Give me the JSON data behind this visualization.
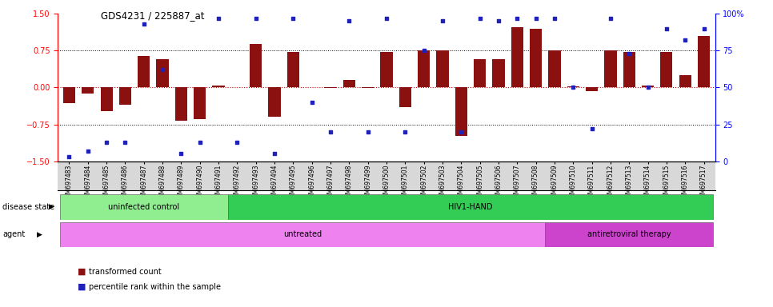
{
  "title": "GDS4231 / 225887_at",
  "samples": [
    "GSM697483",
    "GSM697484",
    "GSM697485",
    "GSM697486",
    "GSM697487",
    "GSM697488",
    "GSM697489",
    "GSM697490",
    "GSM697491",
    "GSM697492",
    "GSM697493",
    "GSM697494",
    "GSM697495",
    "GSM697496",
    "GSM697497",
    "GSM697498",
    "GSM697499",
    "GSM697500",
    "GSM697501",
    "GSM697502",
    "GSM697503",
    "GSM697504",
    "GSM697505",
    "GSM697506",
    "GSM697507",
    "GSM697508",
    "GSM697509",
    "GSM697510",
    "GSM697511",
    "GSM697512",
    "GSM697513",
    "GSM697514",
    "GSM697515",
    "GSM697516",
    "GSM697517"
  ],
  "bar_values": [
    -0.32,
    -0.13,
    -0.48,
    -0.35,
    0.65,
    0.58,
    -0.68,
    -0.65,
    0.04,
    0.01,
    0.88,
    -0.6,
    0.72,
    0.01,
    -0.01,
    0.16,
    -0.01,
    0.72,
    -0.4,
    0.76,
    0.75,
    -0.98,
    0.58,
    0.58,
    1.22,
    1.2,
    0.75,
    0.02,
    -0.07,
    0.75,
    0.72,
    0.04,
    0.72,
    0.25,
    1.05
  ],
  "percentile_values": [
    3,
    7,
    13,
    13,
    93,
    62,
    5,
    13,
    97,
    13,
    97,
    5,
    97,
    40,
    20,
    95,
    20,
    97,
    20,
    75,
    95,
    20,
    97,
    95,
    97,
    97,
    97,
    50,
    22,
    97,
    73,
    50,
    90,
    82,
    90
  ],
  "bar_color": "#8B1010",
  "dot_color": "#2020BB",
  "ylim_left": [
    -1.5,
    1.5
  ],
  "ylim_right": [
    0,
    100
  ],
  "yticks_left": [
    -1.5,
    -0.75,
    0.0,
    0.75,
    1.5
  ],
  "yticks_right": [
    0,
    25,
    50,
    75,
    100
  ],
  "disease_state_groups": [
    {
      "label": "uninfected control",
      "start": 0,
      "end": 9,
      "color": "#90EE90"
    },
    {
      "label": "HIV1-HAND",
      "start": 9,
      "end": 35,
      "color": "#33CC55"
    }
  ],
  "agent_groups": [
    {
      "label": "untreated",
      "start": 0,
      "end": 26,
      "color": "#EE82EE"
    },
    {
      "label": "antiretroviral therapy",
      "start": 26,
      "end": 35,
      "color": "#CC44CC"
    }
  ],
  "legend_bar_label": "transformed count",
  "legend_dot_label": "percentile rank within the sample",
  "label_disease": "disease state",
  "label_agent": "agent"
}
